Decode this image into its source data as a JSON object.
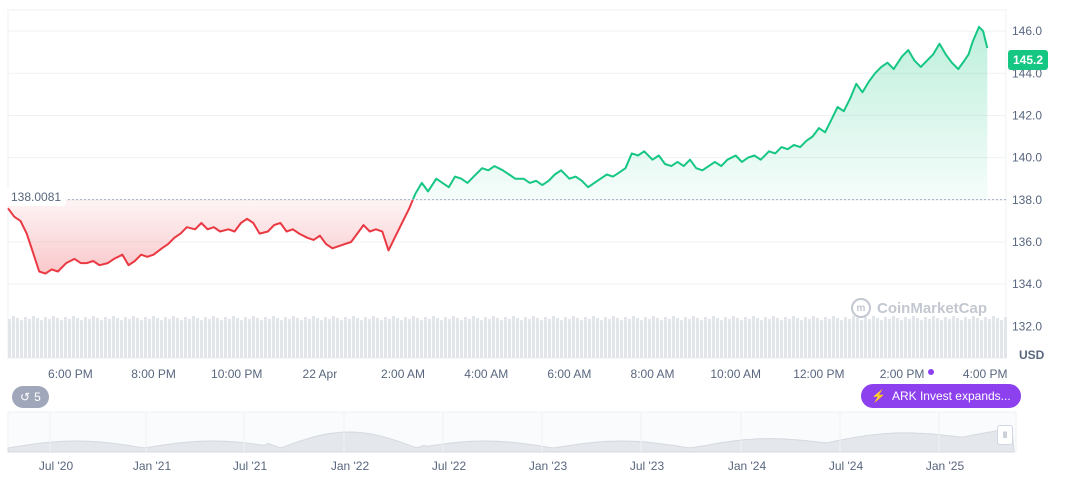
{
  "chart_data": {
    "type": "line",
    "currency": "USD",
    "baseline": 138.0081,
    "baseline_label": "138.0081",
    "current_price_label": "145.2",
    "ylim": [
      130.5,
      147.0
    ],
    "y_ticks": [
      "146.0",
      "144.0",
      "142.0",
      "140.0",
      "138.0",
      "136.0",
      "134.0",
      "132.0"
    ],
    "y_tick_values": [
      146,
      144,
      142,
      140,
      138,
      136,
      134,
      132
    ],
    "x_ticks": [
      "6:00 PM",
      "8:00 PM",
      "10:00 PM",
      "22 Apr",
      "2:00 AM",
      "4:00 AM",
      "6:00 AM",
      "8:00 AM",
      "10:00 AM",
      "12:00 PM",
      "2:00 PM",
      "4:00 PM"
    ],
    "x_tick_hours": [
      1.5,
      3.5,
      5.5,
      7.5,
      9.5,
      11.5,
      13.5,
      15.5,
      17.5,
      19.5,
      21.5,
      23.5
    ],
    "x_range_hours": [
      0,
      24
    ],
    "series": [
      {
        "points": [
          [
            0.0,
            137.6
          ],
          [
            0.15,
            137.2
          ],
          [
            0.3,
            137.0
          ],
          [
            0.45,
            136.4
          ],
          [
            0.6,
            135.5
          ],
          [
            0.75,
            134.6
          ],
          [
            0.9,
            134.5
          ],
          [
            1.05,
            134.7
          ],
          [
            1.2,
            134.6
          ],
          [
            1.4,
            135.0
          ],
          [
            1.6,
            135.2
          ],
          [
            1.75,
            135.0
          ],
          [
            1.9,
            135.0
          ],
          [
            2.05,
            135.1
          ],
          [
            2.2,
            134.9
          ],
          [
            2.4,
            135.0
          ],
          [
            2.55,
            135.2
          ],
          [
            2.75,
            135.4
          ],
          [
            2.9,
            134.9
          ],
          [
            3.05,
            135.1
          ],
          [
            3.2,
            135.4
          ],
          [
            3.35,
            135.3
          ],
          [
            3.5,
            135.4
          ],
          [
            3.7,
            135.7
          ],
          [
            3.85,
            135.9
          ],
          [
            4.0,
            136.2
          ],
          [
            4.15,
            136.4
          ],
          [
            4.3,
            136.7
          ],
          [
            4.5,
            136.6
          ],
          [
            4.65,
            136.9
          ],
          [
            4.8,
            136.6
          ],
          [
            4.95,
            136.7
          ],
          [
            5.1,
            136.5
          ],
          [
            5.3,
            136.6
          ],
          [
            5.45,
            136.5
          ],
          [
            5.6,
            136.9
          ],
          [
            5.75,
            137.1
          ],
          [
            5.9,
            136.9
          ],
          [
            6.05,
            136.4
          ],
          [
            6.25,
            136.5
          ],
          [
            6.4,
            136.8
          ],
          [
            6.55,
            136.9
          ],
          [
            6.7,
            136.5
          ],
          [
            6.85,
            136.6
          ],
          [
            7.0,
            136.4
          ],
          [
            7.2,
            136.2
          ],
          [
            7.35,
            136.1
          ],
          [
            7.5,
            136.3
          ],
          [
            7.65,
            135.9
          ],
          [
            7.8,
            135.7
          ],
          [
            7.95,
            135.8
          ],
          [
            8.1,
            135.9
          ],
          [
            8.25,
            136.0
          ],
          [
            8.4,
            136.4
          ],
          [
            8.55,
            136.8
          ],
          [
            8.7,
            136.5
          ],
          [
            8.85,
            136.6
          ],
          [
            9.0,
            136.5
          ],
          [
            9.15,
            135.6
          ],
          [
            9.3,
            136.2
          ],
          [
            9.5,
            137.0
          ],
          [
            9.65,
            137.6
          ],
          [
            9.8,
            138.3
          ],
          [
            9.95,
            138.8
          ],
          [
            10.1,
            138.4
          ],
          [
            10.3,
            139.0
          ],
          [
            10.45,
            138.8
          ],
          [
            10.6,
            138.6
          ],
          [
            10.75,
            139.1
          ],
          [
            10.9,
            139.0
          ],
          [
            11.05,
            138.8
          ],
          [
            11.2,
            139.1
          ],
          [
            11.4,
            139.5
          ],
          [
            11.55,
            139.4
          ],
          [
            11.7,
            139.6
          ],
          [
            11.9,
            139.4
          ],
          [
            12.05,
            139.2
          ],
          [
            12.2,
            139.0
          ],
          [
            12.4,
            139.0
          ],
          [
            12.55,
            138.8
          ],
          [
            12.7,
            138.9
          ],
          [
            12.85,
            138.7
          ],
          [
            13.0,
            138.9
          ],
          [
            13.15,
            139.2
          ],
          [
            13.3,
            139.4
          ],
          [
            13.5,
            139.0
          ],
          [
            13.65,
            139.1
          ],
          [
            13.8,
            138.9
          ],
          [
            13.95,
            138.6
          ],
          [
            14.1,
            138.8
          ],
          [
            14.25,
            139.0
          ],
          [
            14.4,
            139.2
          ],
          [
            14.55,
            139.1
          ],
          [
            14.7,
            139.3
          ],
          [
            14.85,
            139.5
          ],
          [
            15.0,
            140.2
          ],
          [
            15.15,
            140.1
          ],
          [
            15.3,
            140.3
          ],
          [
            15.5,
            139.9
          ],
          [
            15.65,
            140.1
          ],
          [
            15.8,
            139.7
          ],
          [
            15.95,
            139.6
          ],
          [
            16.1,
            139.8
          ],
          [
            16.25,
            139.6
          ],
          [
            16.4,
            139.9
          ],
          [
            16.55,
            139.5
          ],
          [
            16.7,
            139.4
          ],
          [
            16.85,
            139.6
          ],
          [
            17.0,
            139.8
          ],
          [
            17.15,
            139.6
          ],
          [
            17.3,
            139.9
          ],
          [
            17.5,
            140.1
          ],
          [
            17.65,
            139.8
          ],
          [
            17.8,
            140.0
          ],
          [
            17.95,
            140.1
          ],
          [
            18.1,
            139.9
          ],
          [
            18.3,
            140.3
          ],
          [
            18.45,
            140.2
          ],
          [
            18.6,
            140.5
          ],
          [
            18.75,
            140.4
          ],
          [
            18.9,
            140.6
          ],
          [
            19.05,
            140.5
          ],
          [
            19.2,
            140.8
          ],
          [
            19.35,
            141.0
          ],
          [
            19.5,
            141.4
          ],
          [
            19.65,
            141.2
          ],
          [
            19.8,
            141.8
          ],
          [
            19.95,
            142.4
          ],
          [
            20.1,
            142.2
          ],
          [
            20.25,
            142.8
          ],
          [
            20.4,
            143.5
          ],
          [
            20.55,
            143.1
          ],
          [
            20.7,
            143.6
          ],
          [
            20.85,
            144.0
          ],
          [
            21.0,
            144.3
          ],
          [
            21.15,
            144.5
          ],
          [
            21.3,
            144.2
          ],
          [
            21.5,
            144.8
          ],
          [
            21.65,
            145.1
          ],
          [
            21.8,
            144.6
          ],
          [
            21.95,
            144.3
          ],
          [
            22.1,
            144.6
          ],
          [
            22.25,
            144.9
          ],
          [
            22.4,
            145.4
          ],
          [
            22.55,
            144.9
          ],
          [
            22.7,
            144.5
          ],
          [
            22.85,
            144.2
          ],
          [
            23.0,
            144.6
          ],
          [
            23.1,
            144.9
          ],
          [
            23.2,
            145.5
          ],
          [
            23.35,
            146.2
          ],
          [
            23.45,
            146.0
          ],
          [
            23.55,
            145.2
          ]
        ]
      }
    ],
    "navigator": {
      "x_ticks": [
        "Jul '20",
        "Jan '21",
        "Jul '21",
        "Jan '22",
        "Jul '22",
        "Jan '23",
        "Jul '23",
        "Jan '24",
        "Jul '24",
        "Jan '25"
      ]
    }
  },
  "badges": {
    "history_count": "5",
    "news_headline": "ARK Invest expands..."
  },
  "watermark_text": "CoinMarketCap",
  "colors": {
    "up": "#16c784",
    "down": "#ea3943",
    "grid": "#eff2f5",
    "volume": "#e2e5ea",
    "news": "#8c40ee"
  }
}
